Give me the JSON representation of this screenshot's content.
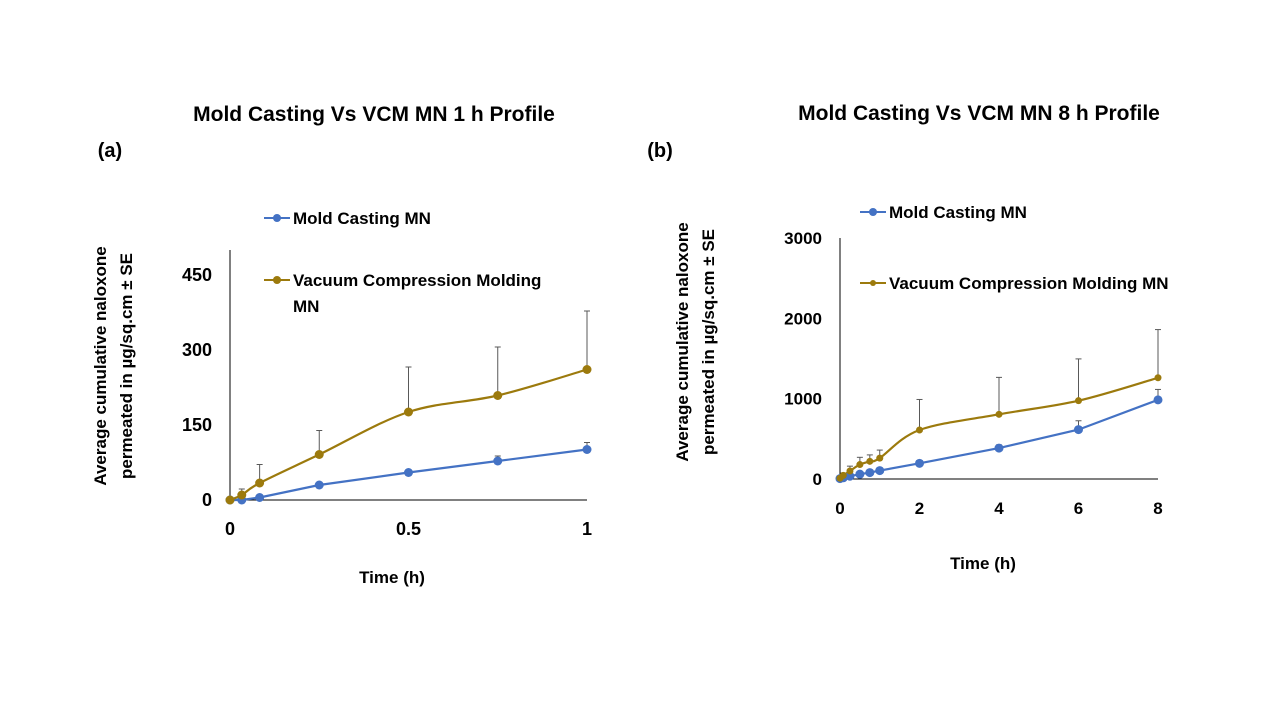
{
  "colors": {
    "mold": "#4472C4",
    "vcm": "#9C7A0D",
    "axis": "#000000",
    "error": "#595959"
  },
  "chart_data": [
    {
      "type": "line",
      "panel_label": "(a)",
      "title": "Mold Casting Vs VCM MN 1 h Profile",
      "xlabel": "Time (h)",
      "ylabel_lines": [
        "Average  cumulative  naloxone",
        "permeated in µg/sq.cm ± SE"
      ],
      "xlim": [
        0,
        1
      ],
      "ylim": [
        0,
        500
      ],
      "x_ticks": [
        0,
        0.5,
        1
      ],
      "x_tick_labels": [
        "0",
        "0.5",
        "1"
      ],
      "y_ticks": [
        0,
        150,
        300,
        450
      ],
      "y_tick_labels": [
        "0",
        "150",
        "300",
        "450"
      ],
      "grid": false,
      "legend_position": "top-right",
      "series": [
        {
          "name": "Mold Casting MN",
          "x": [
            0,
            0.033,
            0.083,
            0.25,
            0.5,
            0.75,
            1
          ],
          "y": [
            0,
            0,
            5,
            30,
            55,
            78,
            101
          ],
          "error": [
            0,
            0,
            2,
            3,
            5,
            10,
            14
          ]
        },
        {
          "name": "Vacuum Compression Molding MN",
          "x": [
            0,
            0.033,
            0.083,
            0.25,
            0.5,
            0.75,
            1
          ],
          "y": [
            0,
            10,
            34,
            91,
            176,
            209,
            261
          ],
          "error": [
            0,
            12,
            37,
            48,
            90,
            97,
            117
          ]
        }
      ]
    },
    {
      "type": "line",
      "panel_label": "(b)",
      "title": "Mold Casting Vs  VCM  MN 8 h Profile",
      "xlabel": "Time (h)",
      "ylabel_lines": [
        "Average  cumulative  naloxone",
        "permeated in µg/sq.cm ± SE"
      ],
      "xlim": [
        0,
        8
      ],
      "ylim": [
        0,
        3000
      ],
      "x_ticks": [
        0,
        2,
        4,
        6,
        8
      ],
      "x_tick_labels": [
        "0",
        "2",
        "4",
        "6",
        "8"
      ],
      "y_ticks": [
        0,
        1000,
        2000,
        3000
      ],
      "y_tick_labels": [
        "0",
        "1000",
        "2000",
        "3000"
      ],
      "grid": false,
      "legend_position": "top",
      "series": [
        {
          "name": "Mold Casting MN",
          "x": [
            0,
            0.083,
            0.25,
            0.5,
            0.75,
            1,
            2,
            4,
            6,
            8
          ],
          "y": [
            5,
            15,
            35,
            60,
            80,
            105,
            195,
            385,
            615,
            985
          ],
          "error": [
            0,
            3,
            5,
            8,
            10,
            12,
            20,
            40,
            110,
            130
          ]
        },
        {
          "name": "Vacuum Compression Molding MN",
          "x": [
            0,
            0.083,
            0.25,
            0.5,
            0.75,
            1,
            2,
            4,
            6,
            8
          ],
          "y": [
            10,
            45,
            100,
            180,
            220,
            260,
            610,
            805,
            975,
            1260
          ],
          "error": [
            0,
            30,
            60,
            90,
            80,
            100,
            380,
            460,
            520,
            600
          ]
        }
      ]
    }
  ]
}
